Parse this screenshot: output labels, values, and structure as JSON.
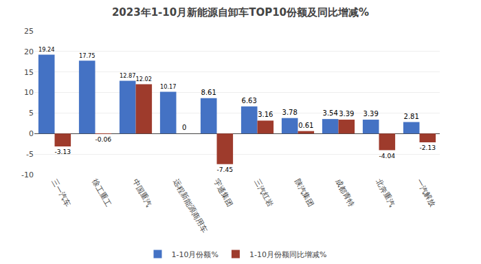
{
  "chart_data": {
    "type": "bar",
    "title": "2023年1-10月新能源自卸车TOP10份额及同比增减%",
    "categories": [
      "三一汽车",
      "徐工重工",
      "中国重汽",
      "远程新能源商用车",
      "宇通集团",
      "三汽红岩",
      "陕汽集团",
      "成都青特",
      "北奔重汽",
      "一汽解放"
    ],
    "series": [
      {
        "name": "1-10月份额%",
        "color": "#4472C4",
        "values": [
          19.24,
          17.75,
          12.87,
          10.17,
          8.61,
          6.63,
          3.78,
          3.54,
          3.39,
          2.81
        ]
      },
      {
        "name": "1-10月份额同比增减%",
        "color": "#9E3B2C",
        "values": [
          -3.13,
          -0.06,
          12.02,
          0,
          -7.45,
          3.16,
          0.61,
          3.39,
          -4.04,
          -2.13
        ]
      }
    ],
    "ylim": [
      -10,
      25
    ],
    "yticks": [
      -10,
      -5,
      0,
      5,
      10,
      15,
      20,
      25
    ],
    "grid": true,
    "legend": "bottom",
    "data_labels": true
  }
}
